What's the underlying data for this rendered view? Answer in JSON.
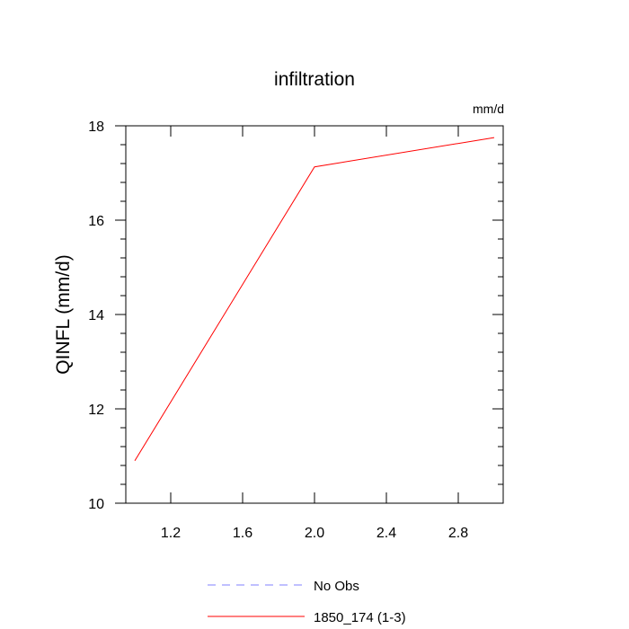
{
  "chart_data": {
    "type": "line",
    "title": "infiltration",
    "units_label": "mm/d",
    "xlabel": "",
    "ylabel": "QINFL  (mm/d)",
    "xlim": [
      0.95,
      3.05
    ],
    "ylim": [
      10,
      18
    ],
    "xticks": [
      1.2,
      1.6,
      2.0,
      2.4,
      2.8
    ],
    "xtick_labels": [
      "1.2",
      "1.6",
      "2.0",
      "2.4",
      "2.8"
    ],
    "yticks": [
      10,
      12,
      14,
      16,
      18
    ],
    "ytick_labels": [
      "10",
      "12",
      "14",
      "16",
      "18"
    ],
    "grid": false,
    "legend_position": "bottom",
    "series": [
      {
        "name": "No Obs",
        "color": "#8080ff",
        "dash": "dashed",
        "x": [],
        "y": []
      },
      {
        "name": "1850_174 (1-3)",
        "color": "#ff0000",
        "dash": "solid",
        "x": [
          1.0,
          2.0,
          3.0
        ],
        "y": [
          10.9,
          17.13,
          17.75
        ]
      }
    ]
  }
}
